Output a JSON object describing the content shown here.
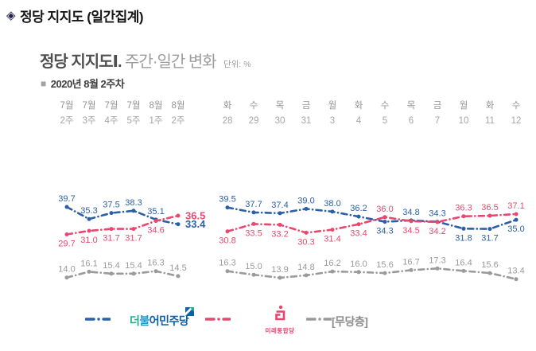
{
  "icons": {
    "title_bullet": "◈",
    "period_bullet": "■"
  },
  "header": {
    "title": "정당 지지도 (일간집계)"
  },
  "section": {
    "title_bold": "정당 지지도Ⅰ.",
    "title_light": " 주간·일간 변화",
    "unit": "단위: %",
    "period": "2020년 8월 2주차"
  },
  "colors": {
    "blue": "#2b5fa7",
    "pink": "#e8486f",
    "gray": "#9a9a9a",
    "axis": "#949494"
  },
  "chart_data": {
    "type": "line",
    "title": "정당 지지도Ⅰ. 주간·일간 변화",
    "unit": "%",
    "grid": false,
    "value_range": [
      13,
      40
    ],
    "left": {
      "subtitle": "주간 변화",
      "categories_line1": [
        "7월",
        "7월",
        "7월",
        "7월",
        "8월",
        "8월"
      ],
      "categories_line2": [
        "2주",
        "3주",
        "4주",
        "5주",
        "1주",
        "2주"
      ],
      "series": [
        {
          "name": "더불어민주당",
          "color": "#2b5fa7",
          "values": [
            39.7,
            35.3,
            37.5,
            38.3,
            35.1,
            33.4
          ]
        },
        {
          "name": "미래통합당",
          "color": "#e8486f",
          "values": [
            29.7,
            31.0,
            31.7,
            31.7,
            34.6,
            36.5
          ]
        },
        {
          "name": "무당층",
          "color": "#9a9a9a",
          "values": [
            14.0,
            16.1,
            15.4,
            15.4,
            16.3,
            14.5
          ]
        }
      ]
    },
    "right": {
      "subtitle": "일간 변화",
      "categories_line1": [
        "화",
        "수",
        "목",
        "금",
        "월",
        "화",
        "수",
        "목",
        "금",
        "월",
        "화",
        "수"
      ],
      "categories_line2": [
        "28",
        "29",
        "30",
        "31",
        "3",
        "4",
        "5",
        "6",
        "7",
        "10",
        "11",
        "12"
      ],
      "series": [
        {
          "name": "더불어민주당",
          "color": "#2b5fa7",
          "values": [
            39.5,
            37.7,
            37.4,
            39.0,
            38.0,
            36.2,
            34.3,
            34.8,
            34.3,
            31.8,
            31.7,
            35.0
          ]
        },
        {
          "name": "미래통합당",
          "color": "#e8486f",
          "values": [
            30.8,
            33.5,
            33.2,
            30.3,
            31.4,
            33.4,
            36.0,
            34.5,
            34.2,
            36.3,
            36.5,
            37.1
          ]
        },
        {
          "name": "무당층",
          "color": "#9a9a9a",
          "values": [
            16.3,
            15.0,
            13.9,
            14.8,
            16.2,
            16.0,
            15.6,
            16.7,
            17.3,
            16.4,
            15.6,
            13.4
          ]
        }
      ]
    },
    "legend_position": "bottom",
    "legend": [
      {
        "id": "minjoo",
        "color": "#2b5fa7",
        "parts": [
          {
            "text": "더",
            "color": "#1fae8f"
          },
          {
            "text": "불",
            "color": "#1f96c3"
          },
          {
            "text": "어민주당",
            "color": "#0d5fae"
          }
        ]
      },
      {
        "id": "tonghap",
        "color": "#e8486f",
        "label": "미래통합당",
        "brand": "#e8446e"
      },
      {
        "id": "mudang",
        "color": "#9a9a9a",
        "label": "[무당층]"
      }
    ]
  }
}
